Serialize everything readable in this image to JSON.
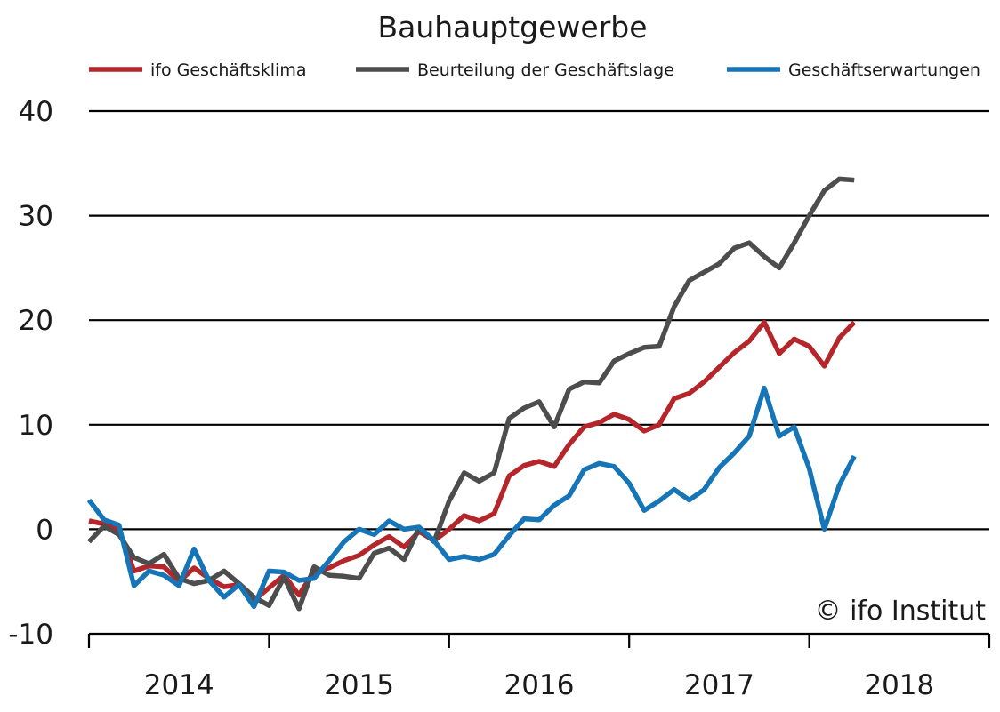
{
  "chart_data": {
    "type": "line",
    "title": "Bauhauptgewerbe",
    "copyright": "© ifo Institut",
    "xlabel": "",
    "ylabel": "",
    "ylim": [
      -10,
      40
    ],
    "yticks": [
      40,
      30,
      20,
      10,
      0,
      -10
    ],
    "year_labels": [
      "2014",
      "2015",
      "2016",
      "2017",
      "2018"
    ],
    "year_ticks": [
      "2013-12",
      "2014-12",
      "2015-12",
      "2016-12",
      "2017-12",
      "2018-12"
    ],
    "grid": true,
    "legend_position": "top",
    "x": [
      "2013-12",
      "2014-01",
      "2014-02",
      "2014-03",
      "2014-04",
      "2014-05",
      "2014-06",
      "2014-07",
      "2014-08",
      "2014-09",
      "2014-10",
      "2014-11",
      "2014-12",
      "2015-01",
      "2015-02",
      "2015-03",
      "2015-04",
      "2015-05",
      "2015-06",
      "2015-07",
      "2015-08",
      "2015-09",
      "2015-10",
      "2015-11",
      "2015-12",
      "2016-01",
      "2016-02",
      "2016-03",
      "2016-04",
      "2016-05",
      "2016-06",
      "2016-07",
      "2016-08",
      "2016-09",
      "2016-10",
      "2016-11",
      "2016-12",
      "2017-01",
      "2017-02",
      "2017-03",
      "2017-04",
      "2017-05",
      "2017-06",
      "2017-07",
      "2017-08",
      "2017-09",
      "2017-10",
      "2017-11",
      "2017-12",
      "2018-01",
      "2018-02",
      "2018-03",
      "2018-04"
    ],
    "series": [
      {
        "name": "ifo Geschäftsklima",
        "color": "#b5262b",
        "values": [
          0.8,
          0.5,
          0.0,
          -4.0,
          -3.5,
          -3.6,
          -5.0,
          -3.7,
          -4.7,
          -5.5,
          -5.3,
          -6.8,
          -5.6,
          -4.4,
          -6.3,
          -4.0,
          -3.7,
          -3.0,
          -2.5,
          -1.5,
          -0.7,
          -1.7,
          -0.2,
          -1.1,
          0.0,
          1.3,
          0.8,
          1.5,
          5.1,
          6.1,
          6.5,
          6.0,
          8.1,
          9.8,
          10.2,
          11.0,
          10.5,
          9.4,
          10.0,
          12.5,
          13.0,
          14.1,
          15.5,
          16.9,
          18.0,
          19.8,
          16.8,
          18.2,
          17.5,
          15.6,
          18.3,
          19.8,
          null
        ]
      },
      {
        "name": "Beurteilung der Geschäftslage",
        "color": "#4d4d4d",
        "values": [
          -1.2,
          0.3,
          -0.5,
          -2.7,
          -3.3,
          -2.4,
          -4.7,
          -5.2,
          -4.9,
          -4.0,
          -5.2,
          -6.5,
          -7.3,
          -4.6,
          -7.6,
          -3.6,
          -4.4,
          -4.5,
          -4.7,
          -2.3,
          -1.8,
          -2.9,
          0.1,
          -1.2,
          2.7,
          5.4,
          4.6,
          5.4,
          10.6,
          11.6,
          12.2,
          9.8,
          13.4,
          14.1,
          14.0,
          16.1,
          16.8,
          17.4,
          17.5,
          21.3,
          23.8,
          24.6,
          25.4,
          26.9,
          27.4,
          26.1,
          25.0,
          27.4,
          30.0,
          32.4,
          33.5,
          33.4,
          null
        ]
      },
      {
        "name": "Geschäftserwartungen",
        "color": "#1575b7",
        "values": [
          2.8,
          0.9,
          0.4,
          -5.4,
          -4.0,
          -4.4,
          -5.4,
          -1.9,
          -4.9,
          -6.5,
          -5.3,
          -7.4,
          -4.0,
          -4.1,
          -4.9,
          -4.7,
          -3.0,
          -1.2,
          0.0,
          -0.5,
          0.8,
          0.0,
          0.2,
          -1.1,
          -2.9,
          -2.6,
          -2.9,
          -2.4,
          -0.6,
          1.0,
          0.9,
          2.3,
          3.2,
          5.7,
          6.3,
          6.0,
          4.4,
          1.8,
          2.7,
          3.8,
          2.8,
          3.8,
          5.9,
          7.3,
          8.9,
          13.5,
          8.9,
          9.8,
          5.8,
          0.0,
          4.2,
          7.0,
          null
        ]
      }
    ]
  }
}
